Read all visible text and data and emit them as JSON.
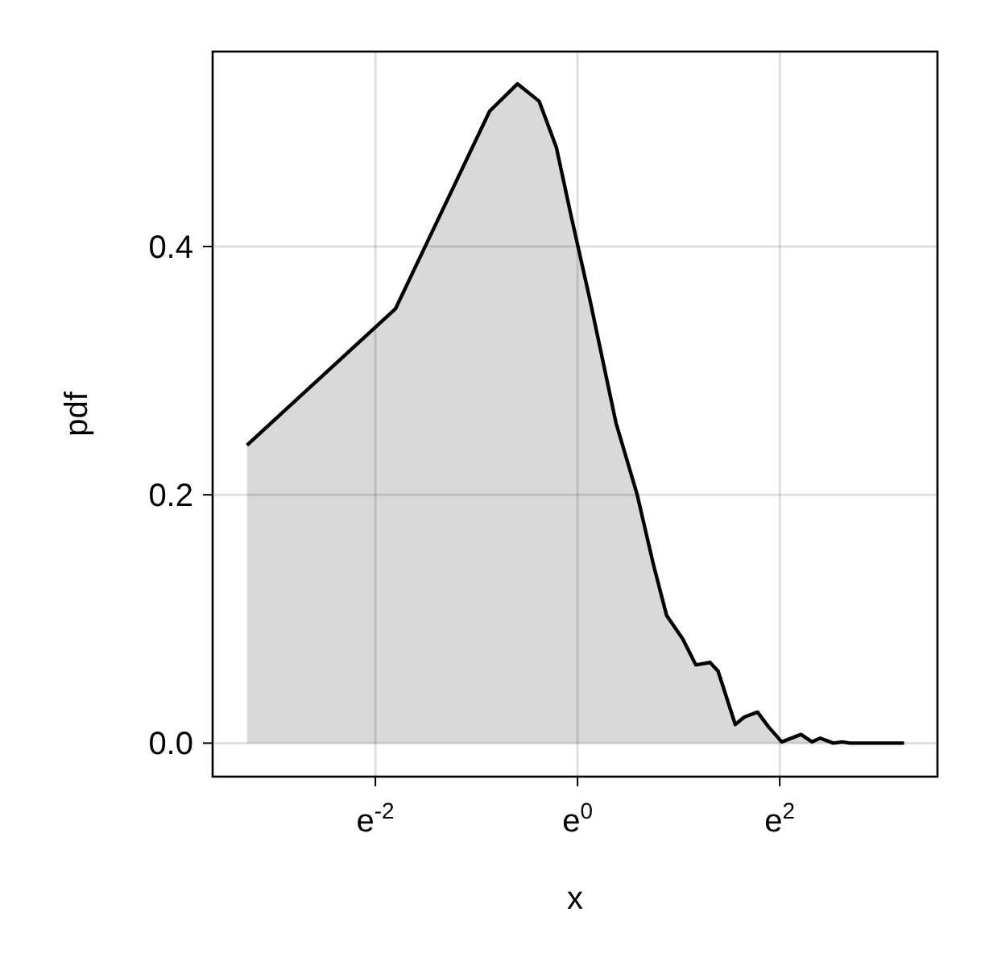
{
  "chart_data": {
    "type": "area",
    "xlabel": "x",
    "ylabel": "pdf",
    "grid": true,
    "xlim": [
      -3.61,
      3.56
    ],
    "ylim": [
      -0.027,
      0.557
    ],
    "xticks": [
      {
        "value": -2,
        "label": "e$^{-2}$"
      },
      {
        "value": 0,
        "label": "e$^{0}$"
      },
      {
        "value": 2,
        "label": "e$^{2}$"
      }
    ],
    "yticks": [
      {
        "value": 0,
        "label": "0.0"
      },
      {
        "value": 0.2,
        "label": "0.2"
      },
      {
        "value": 0.4,
        "label": "0.4"
      }
    ],
    "series": [
      {
        "color": "#000000",
        "x": [
          -3.27,
          -1.8,
          -0.87,
          -0.595,
          -0.38,
          -0.21,
          -0.07,
          0.12,
          0.38,
          0.59,
          0.75,
          0.88,
          1.04,
          1.17,
          1.31,
          1.39,
          1.56,
          1.65,
          1.78,
          1.89,
          2.02,
          2.21,
          2.32,
          2.4,
          2.53,
          2.62,
          2.69,
          3.23
        ],
        "values": [
          0.24,
          0.35,
          0.509,
          0.531,
          0.517,
          0.48,
          0.427,
          0.358,
          0.258,
          0.2,
          0.144,
          0.103,
          0.084,
          0.063,
          0.065,
          0.058,
          0.015,
          0.021,
          0.025,
          0.013,
          0.001,
          0.007,
          0.001,
          0.004,
          0,
          0.001,
          0,
          0
        ]
      }
    ]
  }
}
